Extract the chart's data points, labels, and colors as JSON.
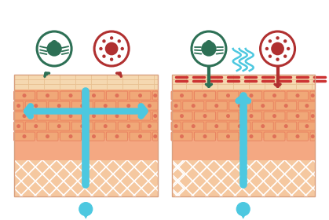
{
  "bg_color": "#ffffff",
  "blue": "#4dc8e0",
  "green": "#2d7055",
  "red": "#b03030",
  "brick_face": "#f0a878",
  "brick_edge": "#e88060",
  "brick_dot": "#e07058",
  "sc_face": "#f5d8b0",
  "sc_edge": "#e8c090",
  "epi_bg": "#f2a070",
  "derm_bg": "#f4a882",
  "hypo_bg": "#f5c8a0",
  "barrier_red": "#cc3333",
  "panel_outline": "#d8a080"
}
